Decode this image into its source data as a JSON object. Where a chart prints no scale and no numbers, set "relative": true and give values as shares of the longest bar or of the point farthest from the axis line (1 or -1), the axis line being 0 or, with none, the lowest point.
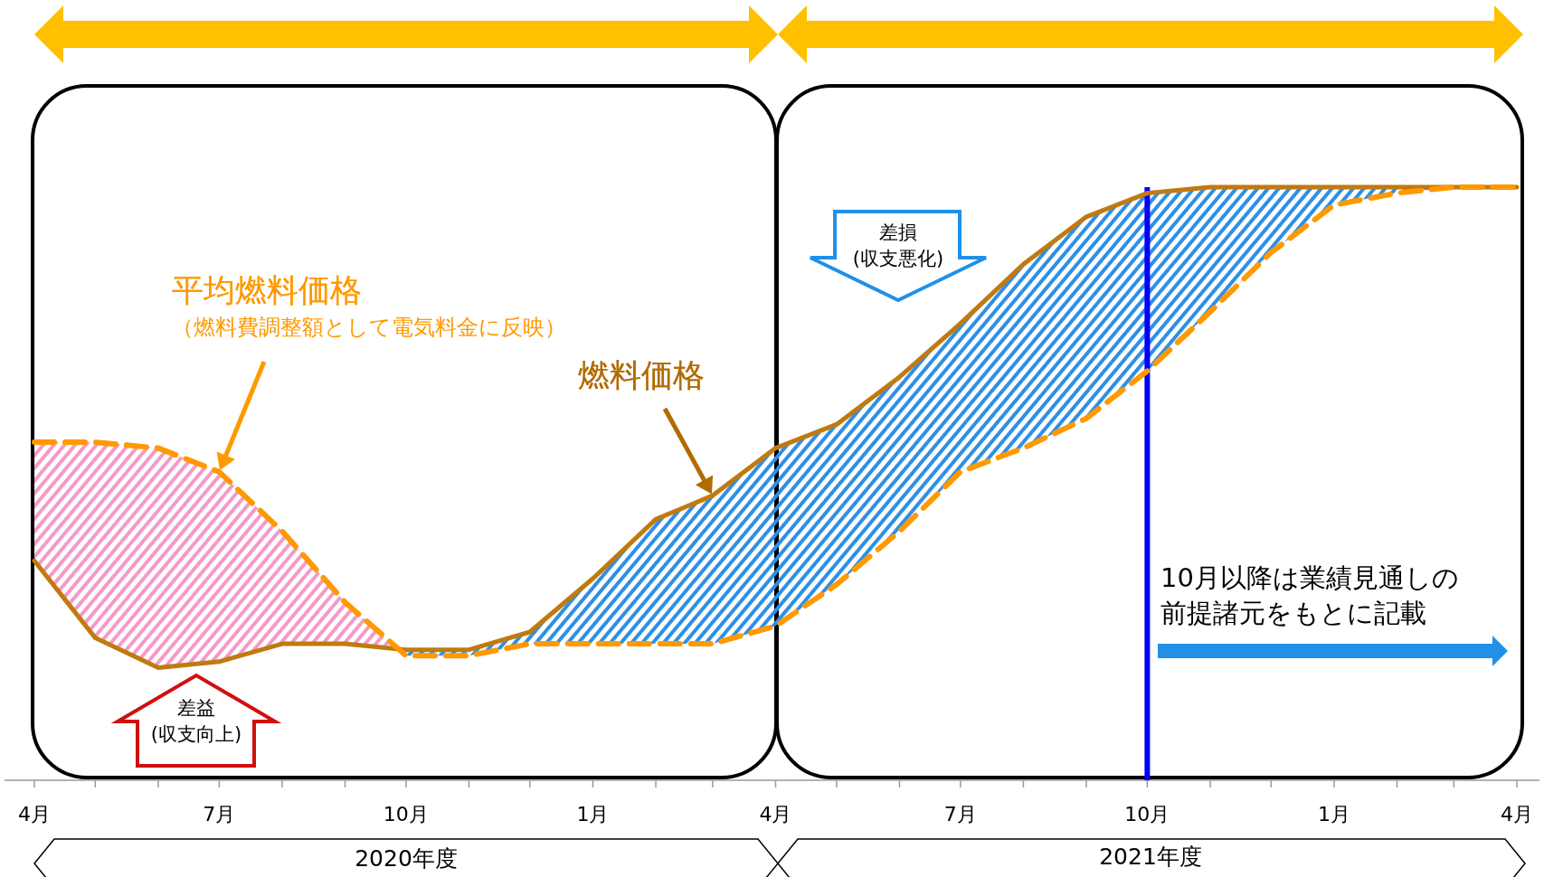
{
  "chart_data": {
    "type": "line",
    "relative": true,
    "x": [
      "2020-04",
      "2020-05",
      "2020-06",
      "2020-07",
      "2020-08",
      "2020-09",
      "2020-10",
      "2020-11",
      "2020-12",
      "2021-01",
      "2021-02",
      "2021-03",
      "2021-04",
      "2021-05",
      "2021-06",
      "2021-07",
      "2021-08",
      "2021-09",
      "2021-10",
      "2021-11",
      "2021-12",
      "2022-01",
      "2022-02",
      "2022-03",
      "2022-04"
    ],
    "xlim": [
      "2020-04",
      "2022-04"
    ],
    "xticks": [
      {
        "value": "2020-04",
        "label": "4月"
      },
      {
        "value": "2020-05",
        "label": null
      },
      {
        "value": "2020-06",
        "label": null
      },
      {
        "value": "2020-07",
        "label": "7月"
      },
      {
        "value": "2020-08",
        "label": null
      },
      {
        "value": "2020-09",
        "label": null
      },
      {
        "value": "2020-10",
        "label": "10月"
      },
      {
        "value": "2020-11",
        "label": null
      },
      {
        "value": "2020-12",
        "label": null
      },
      {
        "value": "2021-01",
        "label": "1月"
      },
      {
        "value": "2021-02",
        "label": null
      },
      {
        "value": "2021-03",
        "label": null
      },
      {
        "value": "2021-04",
        "label": "4月"
      },
      {
        "value": "2021-05",
        "label": null
      },
      {
        "value": "2021-06",
        "label": null
      },
      {
        "value": "2021-07",
        "label": "7月"
      },
      {
        "value": "2021-08",
        "label": null
      },
      {
        "value": "2021-09",
        "label": null
      },
      {
        "value": "2021-10",
        "label": "10月"
      },
      {
        "value": "2021-11",
        "label": null
      },
      {
        "value": "2021-12",
        "label": null
      },
      {
        "value": "2022-01",
        "label": "1月"
      },
      {
        "value": "2022-02",
        "label": null
      },
      {
        "value": "2022-03",
        "label": null
      },
      {
        "value": "2022-04",
        "label": "4月"
      }
    ],
    "series": [
      {
        "name": "燃料価格",
        "color": "#c07a10",
        "line_style": "solid",
        "values": [
          0.37,
          0.24,
          0.19,
          0.2,
          0.23,
          0.23,
          0.22,
          0.22,
          0.25,
          0.34,
          0.44,
          0.48,
          0.56,
          0.6,
          0.68,
          0.77,
          0.87,
          0.95,
          0.99,
          1,
          1,
          1,
          1,
          1,
          1
        ],
        "lower": [
          0.37,
          0.24,
          0.19,
          0.2,
          0.23,
          0.23,
          0.22,
          0.22,
          0.25,
          0.34,
          0.44,
          0.48,
          0.56,
          0.6,
          0.68,
          0.77,
          0.87,
          0.95,
          0.99,
          1,
          1,
          1,
          1,
          1,
          1
        ],
        "upper": [
          0.57,
          0.57,
          0.56,
          0.52,
          0.42,
          0.3,
          0.21,
          0.21,
          0.23,
          0.23,
          0.23,
          0.23,
          0.26,
          0.33,
          0.42,
          0.52,
          0.56,
          0.61,
          0.69,
          0.79,
          0.89,
          0.97,
          0.99,
          1,
          1
        ]
      },
      {
        "name": "平均燃料価格",
        "color": "#ff9900",
        "line_style": "dashed",
        "values": [
          0.57,
          0.57,
          0.56,
          0.52,
          0.42,
          0.3,
          0.21,
          0.21,
          0.23,
          0.23,
          0.23,
          0.23,
          0.26,
          0.33,
          0.42,
          0.52,
          0.56,
          0.61,
          0.69,
          0.79,
          0.89,
          0.97,
          0.99,
          1,
          1
        ]
      }
    ],
    "ref_lines": [
      {
        "axis": "x",
        "value": "2021-10",
        "color": "#0000ff"
      }
    ],
    "annotations": [
      "（燃料費調整額として電気料金に反映）",
      "差益\n(収支向上)",
      "差損\n(収支悪化)",
      "10月以降は業績見通しの",
      "前提諸元をもとに記載",
      "2020年度",
      "2021年度"
    ],
    "marker": "none"
  }
}
